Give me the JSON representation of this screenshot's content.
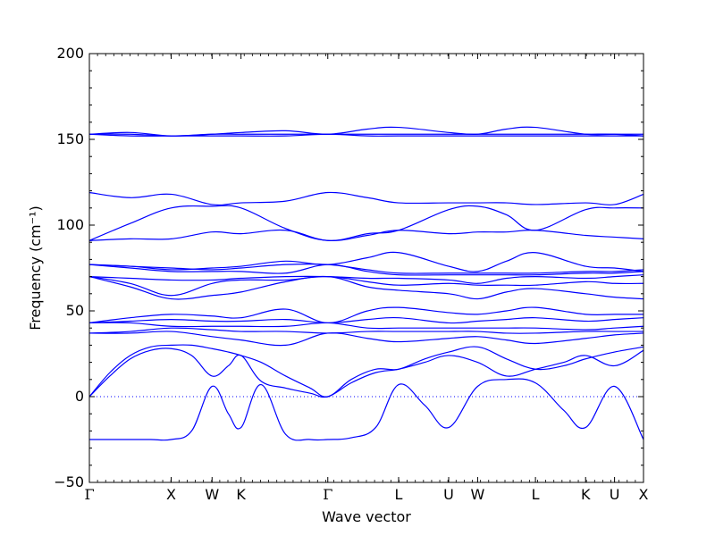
{
  "chart_data": {
    "type": "line",
    "xlabel": "Wave vector",
    "ylabel": "Frequency (cm⁻¹)",
    "ylim": [
      -50,
      200
    ],
    "yticks": [
      -50,
      0,
      50,
      100,
      150,
      200
    ],
    "grid": false,
    "legend": "none",
    "zero_line": true,
    "colors": {
      "band": "#0000ff",
      "axis": "#000000",
      "zero_line": "#0000ff"
    },
    "kpoints": [
      {
        "label": "Γ",
        "x": 0.0
      },
      {
        "label": "X",
        "x": 1.0
      },
      {
        "label": "W",
        "x": 1.5
      },
      {
        "label": "K",
        "x": 1.854
      },
      {
        "label": "Γ",
        "x": 2.915
      },
      {
        "label": "L",
        "x": 3.781
      },
      {
        "label": "U",
        "x": 4.393
      },
      {
        "label": "W",
        "x": 4.747
      },
      {
        "label": "L",
        "x": 5.454
      },
      {
        "label": "K",
        "x": 6.067
      },
      {
        "label": "U",
        "x": 6.421
      },
      {
        "label": "X",
        "x": 6.775
      }
    ],
    "xlim": [
      0,
      6.775
    ],
    "series": [
      {
        "x": [
          0,
          0.25,
          0.5,
          0.75,
          1.0,
          1.25,
          1.5,
          1.7,
          1.854,
          2.1,
          2.4,
          2.7,
          2.915,
          3.2,
          3.5,
          3.781,
          4.1,
          4.393,
          4.747,
          5.1,
          5.454,
          5.8,
          6.067,
          6.421,
          6.775
        ],
        "y": [
          -25,
          -25,
          -25,
          -25,
          -25,
          -20,
          6,
          -10,
          -18,
          7,
          -22,
          -25,
          -25,
          -24,
          -18,
          7,
          -5,
          -18,
          6,
          10,
          8,
          -8,
          -18,
          6,
          -25
        ]
      },
      {
        "x": [
          0,
          0.25,
          0.5,
          0.75,
          1.0,
          1.25,
          1.5,
          1.7,
          1.854,
          2.1,
          2.4,
          2.7,
          2.915,
          3.2,
          3.5,
          3.781,
          4.1,
          4.393,
          4.747,
          5.1,
          5.454,
          5.8,
          6.067,
          6.421,
          6.775
        ],
        "y": [
          0,
          12,
          22,
          27,
          28,
          24,
          12,
          18,
          24,
          9,
          5,
          2,
          0,
          8,
          14,
          16,
          20,
          24,
          20,
          12,
          16,
          20,
          24,
          18,
          27
        ]
      },
      {
        "x": [
          0,
          0.25,
          0.5,
          0.75,
          1.0,
          1.25,
          1.5,
          1.7,
          1.854,
          2.1,
          2.4,
          2.7,
          2.915,
          3.2,
          3.5,
          3.781,
          4.1,
          4.393,
          4.747,
          5.1,
          5.454,
          5.8,
          6.067,
          6.421,
          6.775
        ],
        "y": [
          0,
          14,
          24,
          29,
          30,
          30,
          28,
          26,
          24,
          20,
          12,
          5,
          0,
          10,
          16,
          16,
          22,
          26,
          29,
          22,
          16,
          18,
          22,
          26,
          29
        ]
      },
      {
        "x": [
          0,
          0.5,
          1.0,
          1.5,
          1.854,
          2.4,
          2.915,
          3.4,
          3.781,
          4.393,
          4.747,
          5.1,
          5.454,
          6.067,
          6.421,
          6.775
        ],
        "y": [
          37,
          37,
          38,
          35,
          33,
          30,
          37,
          34,
          32,
          34,
          35,
          33,
          31,
          34,
          36,
          37
        ]
      },
      {
        "x": [
          0,
          0.5,
          1.0,
          1.5,
          1.854,
          2.4,
          2.915,
          3.4,
          3.781,
          4.393,
          4.747,
          5.1,
          5.454,
          6.067,
          6.421,
          6.775
        ],
        "y": [
          37,
          38,
          40,
          39,
          38,
          38,
          37,
          38,
          38,
          38,
          38,
          37,
          37,
          38,
          38,
          38
        ]
      },
      {
        "x": [
          0,
          0.5,
          1.0,
          1.5,
          1.854,
          2.4,
          2.915,
          3.4,
          3.781,
          4.393,
          4.747,
          5.1,
          5.454,
          6.067,
          6.421,
          6.775
        ],
        "y": [
          43,
          43,
          41,
          41,
          41,
          41,
          43,
          40,
          40,
          40,
          40,
          40,
          40,
          39,
          40,
          41
        ]
      },
      {
        "x": [
          0,
          0.5,
          1.0,
          1.5,
          1.854,
          2.4,
          2.915,
          3.4,
          3.781,
          4.393,
          4.747,
          5.1,
          5.454,
          6.067,
          6.421,
          6.775
        ],
        "y": [
          43,
          44,
          45,
          44,
          44,
          45,
          43,
          45,
          46,
          43,
          44,
          45,
          46,
          44,
          45,
          46
        ]
      },
      {
        "x": [
          0,
          0.5,
          1.0,
          1.5,
          1.854,
          2.4,
          2.915,
          3.4,
          3.781,
          4.393,
          4.747,
          5.1,
          5.454,
          6.067,
          6.421,
          6.775
        ],
        "y": [
          43,
          46,
          48,
          47,
          46,
          51,
          43,
          50,
          52,
          49,
          48,
          50,
          52,
          48,
          48,
          48
        ]
      },
      {
        "x": [
          0,
          0.5,
          1.0,
          1.5,
          1.854,
          2.4,
          2.915,
          3.4,
          3.781,
          4.393,
          4.747,
          5.1,
          5.454,
          6.067,
          6.421,
          6.775
        ],
        "y": [
          70,
          64,
          57,
          59,
          61,
          67,
          70,
          64,
          62,
          60,
          57,
          61,
          63,
          60,
          58,
          57
        ]
      },
      {
        "x": [
          0,
          0.5,
          1.0,
          1.5,
          1.854,
          2.4,
          2.915,
          3.4,
          3.781,
          4.393,
          4.747,
          5.1,
          5.454,
          6.067,
          6.421,
          6.775
        ],
        "y": [
          70,
          66,
          59,
          66,
          68,
          68,
          70,
          67,
          65,
          66,
          65,
          65,
          65,
          67,
          66,
          66
        ]
      },
      {
        "x": [
          0,
          0.5,
          1.0,
          1.5,
          1.854,
          2.4,
          2.915,
          3.4,
          3.781,
          4.393,
          4.747,
          5.1,
          5.454,
          6.067,
          6.421,
          6.775
        ],
        "y": [
          70,
          69,
          68,
          68,
          69,
          70,
          70,
          69,
          69,
          68,
          66,
          69,
          70,
          69,
          70,
          71
        ]
      },
      {
        "x": [
          0,
          0.5,
          1.0,
          1.5,
          1.854,
          2.4,
          2.915,
          3.4,
          3.781,
          4.393,
          4.747,
          5.1,
          5.454,
          6.067,
          6.421,
          6.775
        ],
        "y": [
          77,
          75,
          73,
          73,
          73,
          72,
          77,
          73,
          71,
          71,
          71,
          71,
          71,
          72,
          72,
          73
        ]
      },
      {
        "x": [
          0,
          0.5,
          1.0,
          1.5,
          1.854,
          2.4,
          2.915,
          3.4,
          3.781,
          4.393,
          4.747,
          5.1,
          5.454,
          6.067,
          6.421,
          6.775
        ],
        "y": [
          77,
          76,
          75,
          74,
          75,
          77,
          77,
          74,
          72,
          72,
          72,
          72,
          72,
          73,
          73,
          74
        ]
      },
      {
        "x": [
          0,
          0.5,
          1.0,
          1.5,
          1.854,
          2.4,
          2.915,
          3.4,
          3.781,
          4.393,
          4.747,
          5.1,
          5.454,
          6.067,
          6.421,
          6.775
        ],
        "y": [
          77,
          76,
          74,
          75,
          76,
          79,
          77,
          81,
          84,
          76,
          73,
          79,
          84,
          76,
          75,
          73
        ]
      },
      {
        "x": [
          0,
          0.5,
          1.0,
          1.5,
          1.854,
          2.4,
          2.915,
          3.4,
          3.781,
          4.393,
          4.747,
          5.1,
          5.454,
          6.067,
          6.421,
          6.775
        ],
        "y": [
          91,
          92,
          92,
          96,
          95,
          97,
          91,
          94,
          97,
          95,
          96,
          96,
          97,
          94,
          93,
          92
        ]
      },
      {
        "x": [
          0,
          0.5,
          1.0,
          1.5,
          1.854,
          2.4,
          2.915,
          3.4,
          3.781,
          4.393,
          4.747,
          5.1,
          5.454,
          6.067,
          6.421,
          6.775
        ],
        "y": [
          91,
          101,
          110,
          111,
          110,
          98,
          91,
          95,
          97,
          109,
          111,
          106,
          97,
          109,
          110,
          110
        ]
      },
      {
        "x": [
          0,
          0.5,
          1.0,
          1.5,
          1.854,
          2.4,
          2.915,
          3.4,
          3.781,
          4.393,
          4.747,
          5.1,
          5.454,
          6.067,
          6.421,
          6.775
        ],
        "y": [
          119,
          116,
          118,
          112,
          113,
          114,
          119,
          116,
          113,
          113,
          113,
          113,
          112,
          113,
          112,
          118
        ]
      },
      {
        "x": [
          0,
          0.5,
          1.0,
          1.5,
          1.854,
          2.4,
          2.915,
          3.4,
          3.781,
          4.393,
          4.747,
          5.1,
          5.454,
          6.067,
          6.421,
          6.775
        ],
        "y": [
          153,
          152,
          152,
          152,
          152,
          152,
          153,
          152,
          152,
          152,
          152,
          152,
          152,
          152,
          152,
          152
        ]
      },
      {
        "x": [
          0,
          0.5,
          1.0,
          1.5,
          1.854,
          2.4,
          2.915,
          3.4,
          3.781,
          4.393,
          4.747,
          5.1,
          5.454,
          6.067,
          6.421,
          6.775
        ],
        "y": [
          153,
          153,
          152,
          153,
          153,
          153,
          153,
          153,
          153,
          153,
          153,
          153,
          153,
          153,
          153,
          152
        ]
      },
      {
        "x": [
          0,
          0.5,
          1.0,
          1.5,
          1.854,
          2.4,
          2.915,
          3.4,
          3.781,
          4.393,
          4.747,
          5.1,
          5.454,
          6.067,
          6.421,
          6.775
        ],
        "y": [
          153,
          154,
          152,
          153,
          154,
          155,
          153,
          156,
          157,
          154,
          153,
          156,
          157,
          153,
          153,
          153
        ]
      }
    ]
  }
}
